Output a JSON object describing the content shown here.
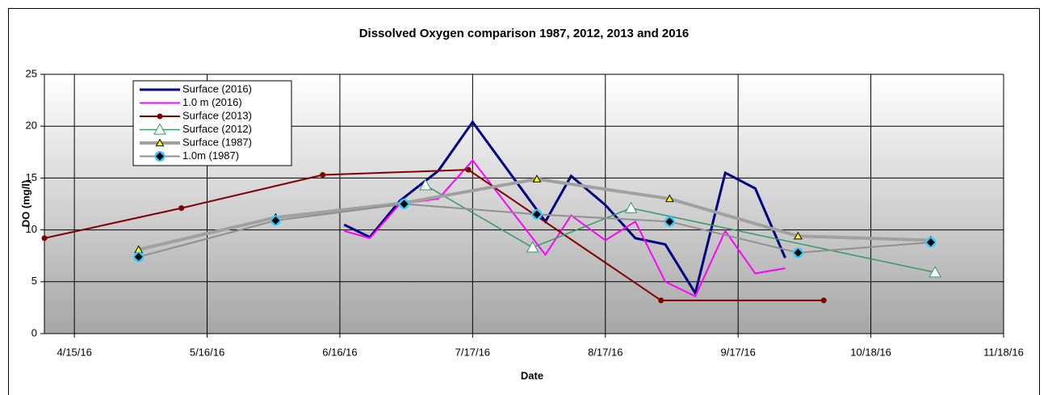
{
  "chart_data": {
    "type": "line",
    "title": "Dissolved Oxygen comparison 1987, 2012, 2013 and 2016",
    "x_label": "Date",
    "y_label": "DO (mg/l)",
    "xlim": [
      "2016-04-08",
      "2016-11-18"
    ],
    "xticks": [
      {
        "value": "2016-04-15",
        "label": "4/15/16"
      },
      {
        "value": "2016-05-16",
        "label": "5/16/16"
      },
      {
        "value": "2016-06-16",
        "label": "6/16/16"
      },
      {
        "value": "2016-07-17",
        "label": "7/17/16"
      },
      {
        "value": "2016-08-17",
        "label": "8/17/16"
      },
      {
        "value": "2016-09-17",
        "label": "9/17/16"
      },
      {
        "value": "2016-10-18",
        "label": "10/18/16"
      },
      {
        "value": "2016-11-18",
        "label": "11/18/16"
      }
    ],
    "ylim": [
      0,
      25
    ],
    "yticks": [
      0,
      5,
      10,
      15,
      20,
      25
    ],
    "grid": true,
    "legend": "upper left",
    "series": [
      {
        "name": "Surface (2016)",
        "color": "#000080",
        "line_width": 3,
        "marker": "none",
        "x": [
          "2016-06-17",
          "2016-06-23",
          "2016-06-30",
          "2016-07-09",
          "2016-07-17",
          "2016-08-03",
          "2016-08-09",
          "2016-08-17",
          "2016-08-24",
          "2016-08-31",
          "2016-09-07",
          "2016-09-14",
          "2016-09-21",
          "2016-09-28"
        ],
        "values": [
          10.5,
          9.3,
          12.8,
          15.7,
          20.4,
          10.8,
          15.2,
          12.4,
          9.2,
          8.6,
          3.9,
          15.5,
          14.0,
          7.3
        ]
      },
      {
        "name": "1.0 m (2016)",
        "color": "#ff00ff",
        "line_width": 2,
        "marker": "none",
        "x": [
          "2016-06-17",
          "2016-06-23",
          "2016-06-30",
          "2016-07-09",
          "2016-07-17",
          "2016-08-03",
          "2016-08-09",
          "2016-08-17",
          "2016-08-24",
          "2016-08-31",
          "2016-09-07",
          "2016-09-14",
          "2016-09-21",
          "2016-09-28"
        ],
        "values": [
          9.9,
          9.2,
          12.5,
          13.0,
          16.7,
          7.6,
          11.4,
          9.0,
          10.8,
          5.0,
          3.6,
          9.9,
          5.8,
          6.3
        ]
      },
      {
        "name": "Surface (2013)",
        "color": "#800000",
        "line_width": 2,
        "marker": "circle",
        "marker_color": "#800000",
        "x": [
          "2016-04-08",
          "2016-05-10",
          "2016-06-12",
          "2016-07-16",
          "2016-08-30",
          "2016-10-07"
        ],
        "values": [
          9.2,
          12.1,
          15.3,
          15.8,
          3.2,
          3.2
        ]
      },
      {
        "name": "Surface (2012)",
        "color": "#339966",
        "line_width": 1.5,
        "marker": "triangle",
        "marker_color": "#ffffff",
        "x": [
          "2016-07-06",
          "2016-07-31",
          "2016-08-23",
          "2016-11-02"
        ],
        "values": [
          14.3,
          8.3,
          12.1,
          5.9
        ]
      },
      {
        "name": "Surface (1987)",
        "color": "#a0a0a0",
        "line_width": 4,
        "marker": "triangle",
        "marker_color": "#ffff00",
        "x": [
          "2016-04-30",
          "2016-06-01",
          "2016-07-01",
          "2016-08-01",
          "2016-09-01",
          "2016-10-01",
          "2016-11-01"
        ],
        "values": [
          8.1,
          11.2,
          12.6,
          14.9,
          13.0,
          9.4,
          9.0
        ]
      },
      {
        "name": "1.0m (1987)",
        "color": "#909090",
        "line_width": 2,
        "marker": "diamond",
        "marker_color": "#000000",
        "x": [
          "2016-04-30",
          "2016-06-01",
          "2016-07-01",
          "2016-08-01",
          "2016-09-01",
          "2016-10-01",
          "2016-11-01"
        ],
        "values": [
          7.4,
          10.9,
          12.5,
          11.5,
          10.8,
          7.8,
          8.8
        ]
      }
    ]
  }
}
